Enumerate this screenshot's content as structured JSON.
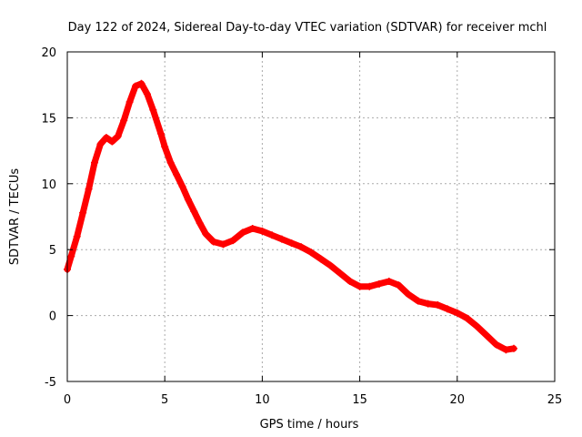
{
  "chart_data": {
    "type": "scatter",
    "title": "Day 122 of 2024, Sidereal Day-to-day VTEC variation (SDTVAR) for receiver mchl",
    "xlabel": "GPS time / hours",
    "ylabel": "SDTVAR / TECUs",
    "xlim": [
      0,
      25
    ],
    "ylim": [
      -5,
      20
    ],
    "xticks": [
      0,
      5,
      10,
      15,
      20,
      25
    ],
    "yticks": [
      -5,
      0,
      5,
      10,
      15,
      20
    ],
    "grid": true,
    "marker": "+",
    "series_color": "#ff0000",
    "series": [
      {
        "name": "SDTVAR",
        "x": [
          0.0,
          0.2,
          0.5,
          0.8,
          1.1,
          1.4,
          1.7,
          2.0,
          2.3,
          2.6,
          2.9,
          3.2,
          3.5,
          3.8,
          4.1,
          4.4,
          4.8,
          5.0,
          5.3,
          5.6,
          5.9,
          6.2,
          6.5,
          6.8,
          7.1,
          7.5,
          8.0,
          8.5,
          9.0,
          9.5,
          10.0,
          10.5,
          11.0,
          11.5,
          12.0,
          12.5,
          13.0,
          13.5,
          14.0,
          14.5,
          15.0,
          15.5,
          16.0,
          16.5,
          17.0,
          17.5,
          18.0,
          18.5,
          19.0,
          19.5,
          20.0,
          20.5,
          21.0,
          21.5,
          22.0,
          22.5,
          22.9
        ],
        "y": [
          3.5,
          4.5,
          6.0,
          7.8,
          9.6,
          11.6,
          13.0,
          13.5,
          13.2,
          13.6,
          14.8,
          16.2,
          17.4,
          17.6,
          16.8,
          15.6,
          13.8,
          12.8,
          11.6,
          10.7,
          9.8,
          8.8,
          7.9,
          7.0,
          6.2,
          5.6,
          5.4,
          5.7,
          6.3,
          6.6,
          6.4,
          6.1,
          5.8,
          5.5,
          5.2,
          4.8,
          4.3,
          3.8,
          3.2,
          2.6,
          2.2,
          2.2,
          2.4,
          2.6,
          2.3,
          1.6,
          1.1,
          0.9,
          0.8,
          0.5,
          0.2,
          -0.2,
          -0.8,
          -1.5,
          -2.2,
          -2.6,
          -2.5
        ]
      }
    ]
  }
}
